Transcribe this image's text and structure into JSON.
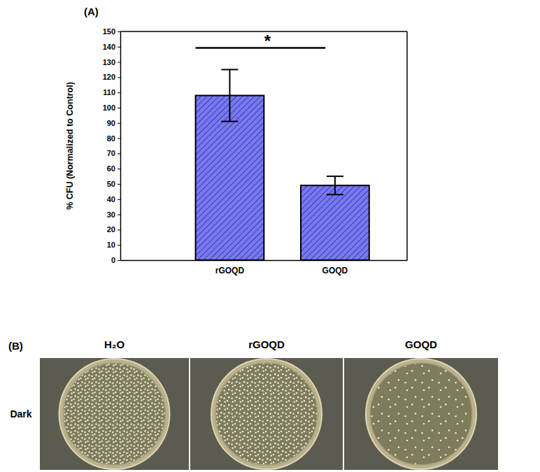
{
  "chart_data": {
    "type": "bar",
    "panel_label": "(A)",
    "y_label": "% CFU (Normalized to Control)",
    "categories": [
      "rGOQD",
      "GOQD"
    ],
    "values": [
      108,
      49
    ],
    "errors": [
      17,
      6
    ],
    "color": "#7878f0",
    "ylim": [
      0,
      150
    ],
    "yticks": [
      0,
      10,
      20,
      30,
      40,
      50,
      60,
      70,
      80,
      90,
      100,
      110,
      120,
      130,
      140,
      150
    ],
    "grid": false,
    "annotations": [
      {
        "text": "*",
        "from": "rGOQD",
        "to": "GOQD"
      }
    ]
  },
  "panel_b": {
    "panel_label": "(B)",
    "columns": [
      "H₂O",
      "rGOQD",
      "GOQD"
    ],
    "rows": [
      "Dark"
    ]
  }
}
